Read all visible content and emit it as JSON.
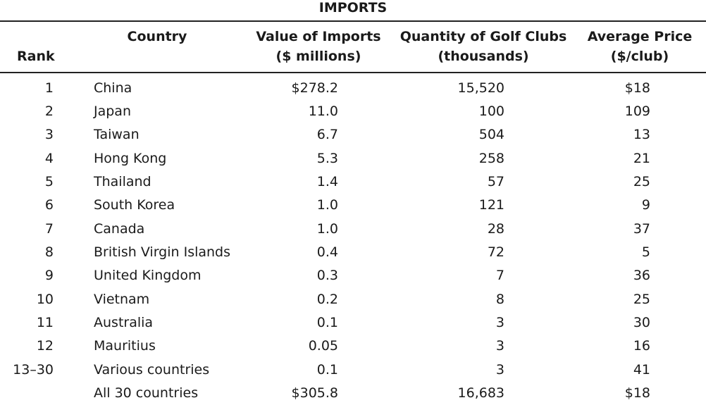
{
  "table": {
    "title": "IMPORTS",
    "headers": {
      "rank": "Rank",
      "country": "Country",
      "value_line1": "Value of Imports",
      "value_line2": "($ millions)",
      "qty_line1": "Quantity of Golf Clubs",
      "qty_line2": "(thousands)",
      "price_line1": "Average Price",
      "price_line2": "($/club)"
    },
    "rows": [
      {
        "rank": "1",
        "country": "China",
        "value": "$278.2",
        "quantity": "15,520",
        "price": "$18"
      },
      {
        "rank": "2",
        "country": "Japan",
        "value": "11.0",
        "quantity": "100",
        "price": "109"
      },
      {
        "rank": "3",
        "country": "Taiwan",
        "value": "6.7",
        "quantity": "504",
        "price": "13"
      },
      {
        "rank": "4",
        "country": "Hong Kong",
        "value": "5.3",
        "quantity": "258",
        "price": "21"
      },
      {
        "rank": "5",
        "country": "Thailand",
        "value": "1.4",
        "quantity": "57",
        "price": "25"
      },
      {
        "rank": "6",
        "country": "South Korea",
        "value": "1.0",
        "quantity": "121",
        "price": "9"
      },
      {
        "rank": "7",
        "country": "Canada",
        "value": "1.0",
        "quantity": "28",
        "price": "37"
      },
      {
        "rank": "8",
        "country": "British Virgin Islands",
        "value": "0.4",
        "quantity": "72",
        "price": "5"
      },
      {
        "rank": "9",
        "country": "United Kingdom",
        "value": "0.3",
        "quantity": "7",
        "price": "36"
      },
      {
        "rank": "10",
        "country": "Vietnam",
        "value": "0.2",
        "quantity": "8",
        "price": "25"
      },
      {
        "rank": "11",
        "country": "Australia",
        "value": "0.1",
        "quantity": "3",
        "price": "30"
      },
      {
        "rank": "12",
        "country": "Mauritius",
        "value": "0.05",
        "quantity": "3",
        "price": "16"
      },
      {
        "rank": "13–30",
        "country": "Various countries",
        "value": "0.1",
        "quantity": "3",
        "price": "41"
      },
      {
        "rank": "",
        "country": "All 30 countries",
        "value": "$305.8",
        "quantity": "16,683",
        "price": "$18"
      }
    ]
  }
}
